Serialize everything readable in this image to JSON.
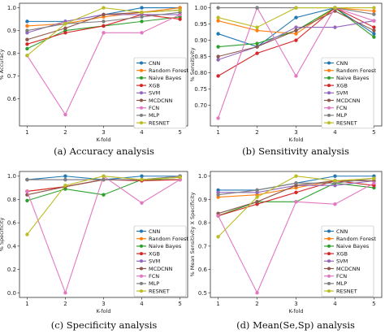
{
  "figure": {
    "panel_captions": [
      "(a)  Accuracy analysis",
      "(b)  Sensitivity analysis",
      "(c)  Specificity analysis",
      "(d)  Mean(Se,Sp) analysis"
    ]
  },
  "colors": {
    "CNN": "#1f77b4",
    "Random Forest": "#ff7f0e",
    "Naive Bayes": "#2ca02c",
    "XGB": "#d62728",
    "SVM": "#9467bd",
    "MCDCNN": "#8c564b",
    "FCN": "#e377c2",
    "MLP": "#7f7f7f",
    "RESNET": "#bcbd22"
  },
  "chart_data": [
    {
      "type": "line",
      "xlabel": "K-fold",
      "ylabel": "% Accuracy",
      "x": [
        1,
        2,
        3,
        4,
        5
      ],
      "ylim": [
        0.5,
        1.0
      ],
      "yticks": [
        0.6,
        0.7,
        0.8,
        0.9,
        1.0
      ],
      "legend_position": "center-right",
      "series": [
        {
          "name": "CNN",
          "values": [
            0.94,
            0.94,
            0.97,
            1.0,
            1.0
          ]
        },
        {
          "name": "Random Forest",
          "values": [
            0.92,
            0.93,
            0.96,
            0.98,
            1.0
          ]
        },
        {
          "name": "Naive Bayes",
          "values": [
            0.82,
            0.9,
            0.92,
            0.94,
            0.96
          ]
        },
        {
          "name": "XGB",
          "values": [
            0.84,
            0.89,
            0.92,
            0.97,
            0.95
          ]
        },
        {
          "name": "SVM",
          "values": [
            0.89,
            0.94,
            0.97,
            0.97,
            0.97
          ]
        },
        {
          "name": "MCDCNN",
          "values": [
            0.86,
            0.91,
            0.97,
            0.98,
            0.99
          ]
        },
        {
          "name": "FCN",
          "values": [
            0.79,
            0.53,
            0.89,
            0.89,
            0.97
          ]
        },
        {
          "name": "MLP",
          "values": [
            0.9,
            0.93,
            0.94,
            0.96,
            0.98
          ]
        },
        {
          "name": "RESNET",
          "values": [
            0.79,
            0.93,
            1.0,
            0.98,
            0.99
          ]
        }
      ]
    },
    {
      "type": "line",
      "xlabel": "K-fold",
      "ylabel": "% Sensitivity",
      "x": [
        1,
        2,
        3,
        4,
        5
      ],
      "ylim": [
        0.65,
        1.0
      ],
      "yticks": [
        0.7,
        0.75,
        0.8,
        0.85,
        0.9,
        0.95,
        1.0
      ],
      "legend_position": "center-right",
      "series": [
        {
          "name": "CNN",
          "values": [
            0.92,
            0.88,
            0.97,
            1.0,
            0.92
          ]
        },
        {
          "name": "Random Forest",
          "values": [
            0.96,
            0.93,
            0.92,
            1.0,
            0.99
          ]
        },
        {
          "name": "Naive Bayes",
          "values": [
            0.88,
            0.89,
            0.93,
            1.0,
            0.91
          ]
        },
        {
          "name": "XGB",
          "values": [
            0.79,
            0.86,
            0.9,
            1.0,
            0.94
          ]
        },
        {
          "name": "SVM",
          "values": [
            0.84,
            0.88,
            0.94,
            0.94,
            0.96
          ]
        },
        {
          "name": "MCDCNN",
          "values": [
            0.85,
            0.88,
            0.93,
            0.99,
            0.93
          ]
        },
        {
          "name": "FCN",
          "values": [
            0.66,
            1.0,
            0.79,
            1.0,
            0.96
          ]
        },
        {
          "name": "MLP",
          "values": [
            1.0,
            1.0,
            1.0,
            1.0,
            0.98
          ]
        },
        {
          "name": "RESNET",
          "values": [
            0.97,
            0.94,
            1.0,
            1.0,
            1.0
          ]
        }
      ]
    },
    {
      "type": "line",
      "xlabel": "K-fold",
      "ylabel": "% Specificity",
      "x": [
        1,
        2,
        3,
        4,
        5
      ],
      "ylim": [
        0.0,
        1.0
      ],
      "yticks": [
        0.0,
        0.2,
        0.4,
        0.6,
        0.8,
        1.0
      ],
      "legend_position": "center-right",
      "series": [
        {
          "name": "CNN",
          "values": [
            0.97,
            1.0,
            0.97,
            1.0,
            1.0
          ]
        },
        {
          "name": "Random Forest",
          "values": [
            0.87,
            0.91,
            0.97,
            0.97,
            0.97
          ]
        },
        {
          "name": "Naive Bayes",
          "values": [
            0.79,
            0.89,
            0.84,
            0.97,
            0.97
          ]
        },
        {
          "name": "XGB",
          "values": [
            0.87,
            0.91,
            0.97,
            0.96,
            0.97
          ]
        },
        {
          "name": "SVM",
          "values": [
            0.97,
            0.97,
            0.97,
            0.97,
            1.0
          ]
        },
        {
          "name": "MCDCNN",
          "values": [
            0.84,
            0.91,
            0.97,
            0.97,
            0.99
          ]
        },
        {
          "name": "FCN",
          "values": [
            0.87,
            0.0,
            1.0,
            0.77,
            0.97
          ]
        },
        {
          "name": "MLP",
          "values": [
            0.97,
            0.97,
            0.97,
            0.97,
            1.0
          ]
        },
        {
          "name": "RESNET",
          "values": [
            0.5,
            0.92,
            1.0,
            0.97,
            0.99
          ]
        }
      ]
    },
    {
      "type": "line",
      "xlabel": "K-fold",
      "ylabel": "% Mean Sensitivity X Specificity",
      "x": [
        1,
        2,
        3,
        4,
        5
      ],
      "ylim": [
        0.5,
        1.0
      ],
      "yticks": [
        0.5,
        0.6,
        0.7,
        0.8,
        0.9,
        1.0
      ],
      "legend_position": "center-right",
      "series": [
        {
          "name": "CNN",
          "values": [
            0.94,
            0.94,
            0.97,
            1.0,
            1.0
          ]
        },
        {
          "name": "Random Forest",
          "values": [
            0.91,
            0.92,
            0.95,
            0.98,
            0.99
          ]
        },
        {
          "name": "Naive Bayes",
          "values": [
            0.83,
            0.89,
            0.89,
            0.97,
            0.95
          ]
        },
        {
          "name": "XGB",
          "values": [
            0.83,
            0.88,
            0.93,
            0.98,
            0.96
          ]
        },
        {
          "name": "SVM",
          "values": [
            0.93,
            0.93,
            0.96,
            0.96,
            0.98
          ]
        },
        {
          "name": "MCDCNN",
          "values": [
            0.84,
            0.89,
            0.96,
            0.98,
            0.98
          ]
        },
        {
          "name": "FCN",
          "values": [
            0.83,
            0.5,
            0.89,
            0.88,
            0.97
          ]
        },
        {
          "name": "MLP",
          "values": [
            0.92,
            0.94,
            0.97,
            0.97,
            0.99
          ]
        },
        {
          "name": "RESNET",
          "values": [
            0.74,
            0.91,
            1.0,
            0.98,
            0.99
          ]
        }
      ]
    }
  ]
}
